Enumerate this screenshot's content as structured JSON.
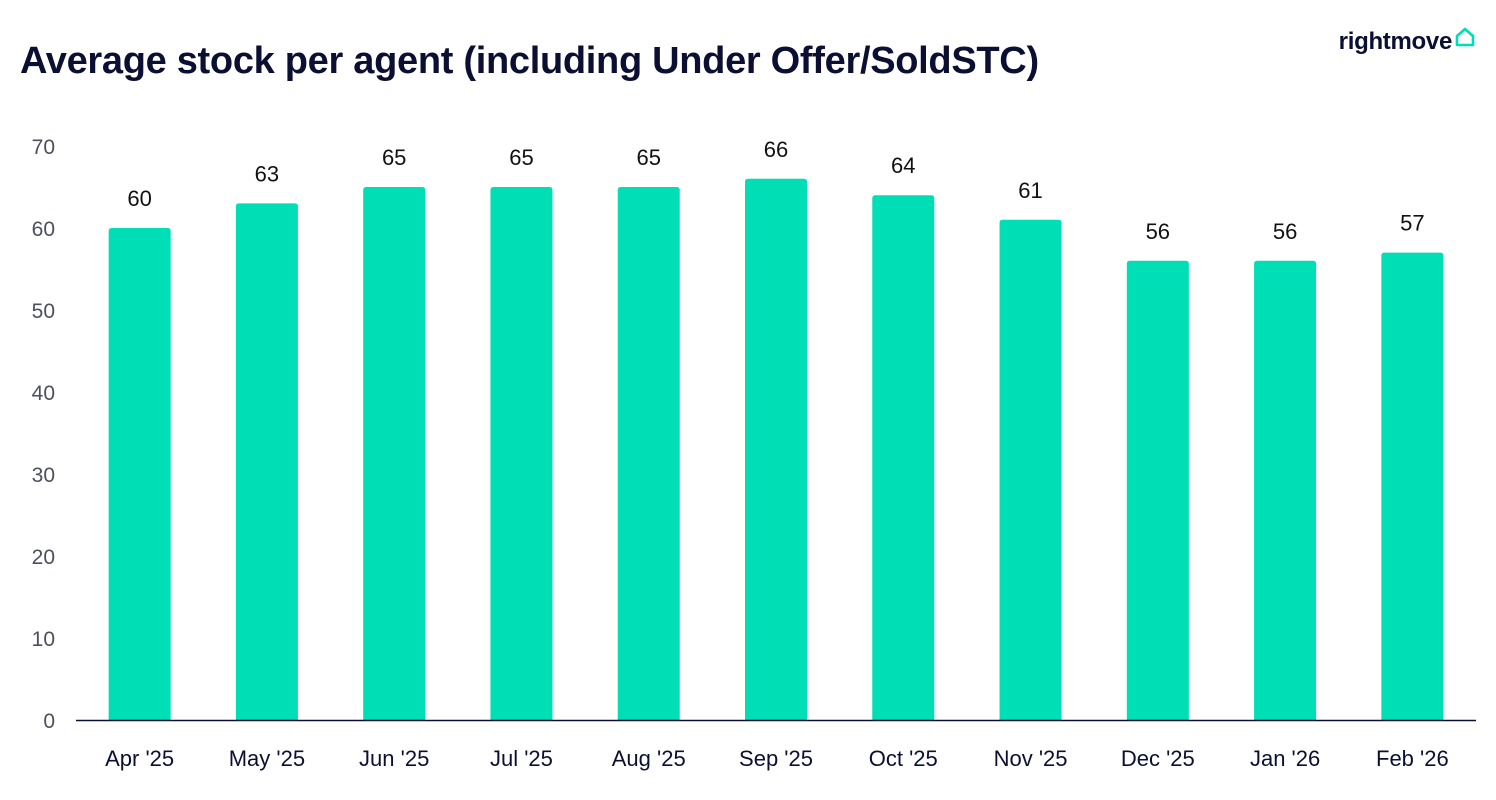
{
  "brand": {
    "logo_text": "rightmove",
    "logo_icon": "house-icon",
    "accent_color": "#00deb6"
  },
  "chart_data": {
    "type": "bar",
    "title": "Average stock per agent (including Under Offer/SoldSTC)",
    "xlabel": "",
    "ylabel": "",
    "categories": [
      "Apr '25",
      "May '25",
      "Jun '25",
      "Jul '25",
      "Aug '25",
      "Sep '25",
      "Oct '25",
      "Nov '25",
      "Dec '25",
      "Jan '26",
      "Feb '26"
    ],
    "values": [
      60,
      63,
      65,
      65,
      65,
      66,
      64,
      61,
      56,
      56,
      57
    ],
    "data_labels": [
      "60",
      "63",
      "65",
      "65",
      "65",
      "66",
      "64",
      "61",
      "56",
      "56",
      "57"
    ],
    "ylim": [
      0,
      70
    ],
    "yticks": [
      0,
      10,
      20,
      30,
      40,
      50,
      60,
      70
    ],
    "ytick_labels": [
      "0",
      "10",
      "20",
      "30",
      "40",
      "50",
      "60",
      "70"
    ],
    "grid": false,
    "bar_color": "#00deb6",
    "axis_color": "#0b1033"
  }
}
